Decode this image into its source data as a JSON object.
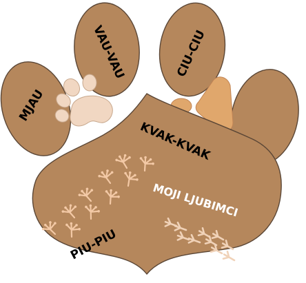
{
  "toes": [
    {
      "label": "MJAU"
    },
    {
      "label": "VAU-VAU"
    },
    {
      "label": "CIU-CIU"
    },
    {
      "label": ""
    }
  ],
  "pad": {
    "top_label": "KVAK-KVAK",
    "title": "MOJI LJUBIMCI",
    "bottom_label": "PIU-PIU"
  },
  "colors": {
    "paw_brown": "#b5875c",
    "outline": "#5a4636",
    "dog_print": "#f1d7c2",
    "cat_print": "#e0a76c",
    "track": "#f3c9a6",
    "bird_track": "#f0d2b8",
    "white_text": "#ffffff",
    "dark_text": "#000000"
  },
  "icons": [
    "dog-paw-print-icon",
    "cat-paw-print-icon",
    "frog-track-icon",
    "bird-track-icon"
  ]
}
